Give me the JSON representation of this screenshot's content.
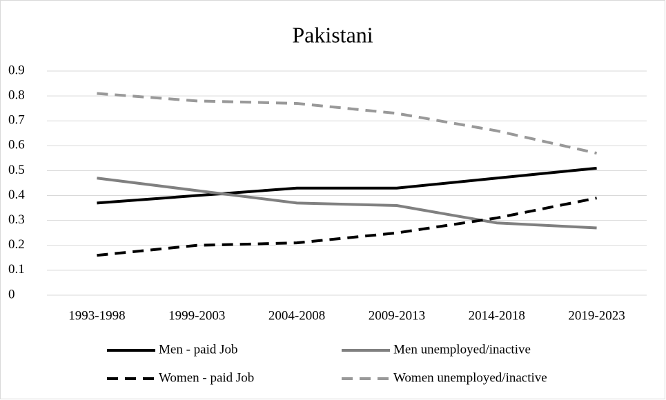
{
  "chart_data": {
    "type": "line",
    "title": "Pakistani",
    "categories": [
      "1993-1998",
      "1999-2003",
      "2004-2008",
      "2009-2013",
      "2014-2018",
      "2019-2023"
    ],
    "series": [
      {
        "name": "Men - paid Job",
        "color": "#000000",
        "dash": false,
        "values": [
          0.37,
          0.4,
          0.43,
          0.43,
          0.47,
          0.51
        ]
      },
      {
        "name": "Men unemployed/inactive",
        "color": "#808080",
        "dash": false,
        "values": [
          0.47,
          0.42,
          0.37,
          0.36,
          0.29,
          0.27
        ]
      },
      {
        "name": "Women - paid Job",
        "color": "#000000",
        "dash": true,
        "values": [
          0.16,
          0.2,
          0.21,
          0.25,
          0.31,
          0.39
        ]
      },
      {
        "name": "Women unemployed/inactive",
        "color": "#999999",
        "dash": true,
        "values": [
          0.81,
          0.78,
          0.77,
          0.73,
          0.66,
          0.57
        ]
      }
    ],
    "ylim": [
      0,
      0.9
    ],
    "yticks": [
      0,
      0.1,
      0.2,
      0.3,
      0.4,
      0.5,
      0.6,
      0.7,
      0.8,
      0.9
    ],
    "grid": true,
    "legend": "bottom"
  }
}
